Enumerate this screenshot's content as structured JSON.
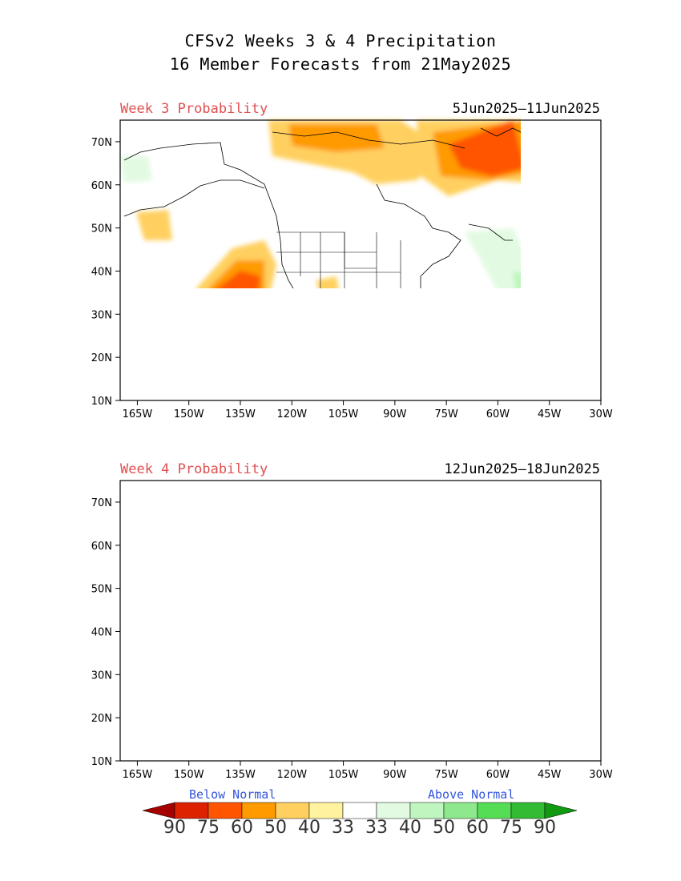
{
  "header": {
    "title_line1": "CFSv2 Weeks 3 & 4 Precipitation",
    "title_line2": "16 Member Forecasts from 21May2025"
  },
  "panels": [
    {
      "label": "Week 3 Probability",
      "dates": "5Jun2025—11Jun2025"
    },
    {
      "label": "Week 4 Probability",
      "dates": "12Jun2025—18Jun2025"
    }
  ],
  "axes": {
    "lat_labels": [
      "70N",
      "60N",
      "50N",
      "40N",
      "30N",
      "20N",
      "10N"
    ],
    "lon_labels": [
      "165W",
      "150W",
      "135W",
      "120W",
      "105W",
      "90W",
      "75W",
      "60W",
      "45W",
      "30W"
    ],
    "lat_values": [
      70,
      60,
      50,
      40,
      30,
      20,
      10
    ],
    "lon_values": [
      -165,
      -150,
      -135,
      -120,
      -105,
      -90,
      -75,
      -60,
      -45,
      -30
    ],
    "lat_range": [
      10,
      75
    ],
    "lon_range": [
      -170,
      -30
    ]
  },
  "legend": {
    "below_label": "Below Normal",
    "above_label": "Above Normal",
    "values": [
      "90",
      "75",
      "60",
      "50",
      "40",
      "33",
      "33",
      "40",
      "50",
      "60",
      "75",
      "90"
    ],
    "colors": [
      "#a50000",
      "#dd2200",
      "#ff5500",
      "#ff9a00",
      "#ffd060",
      "#fff3a0",
      "#ffffff",
      "#e2fae2",
      "#bff5bf",
      "#8ee88e",
      "#55dd55",
      "#33bb33",
      "#119911"
    ]
  }
}
